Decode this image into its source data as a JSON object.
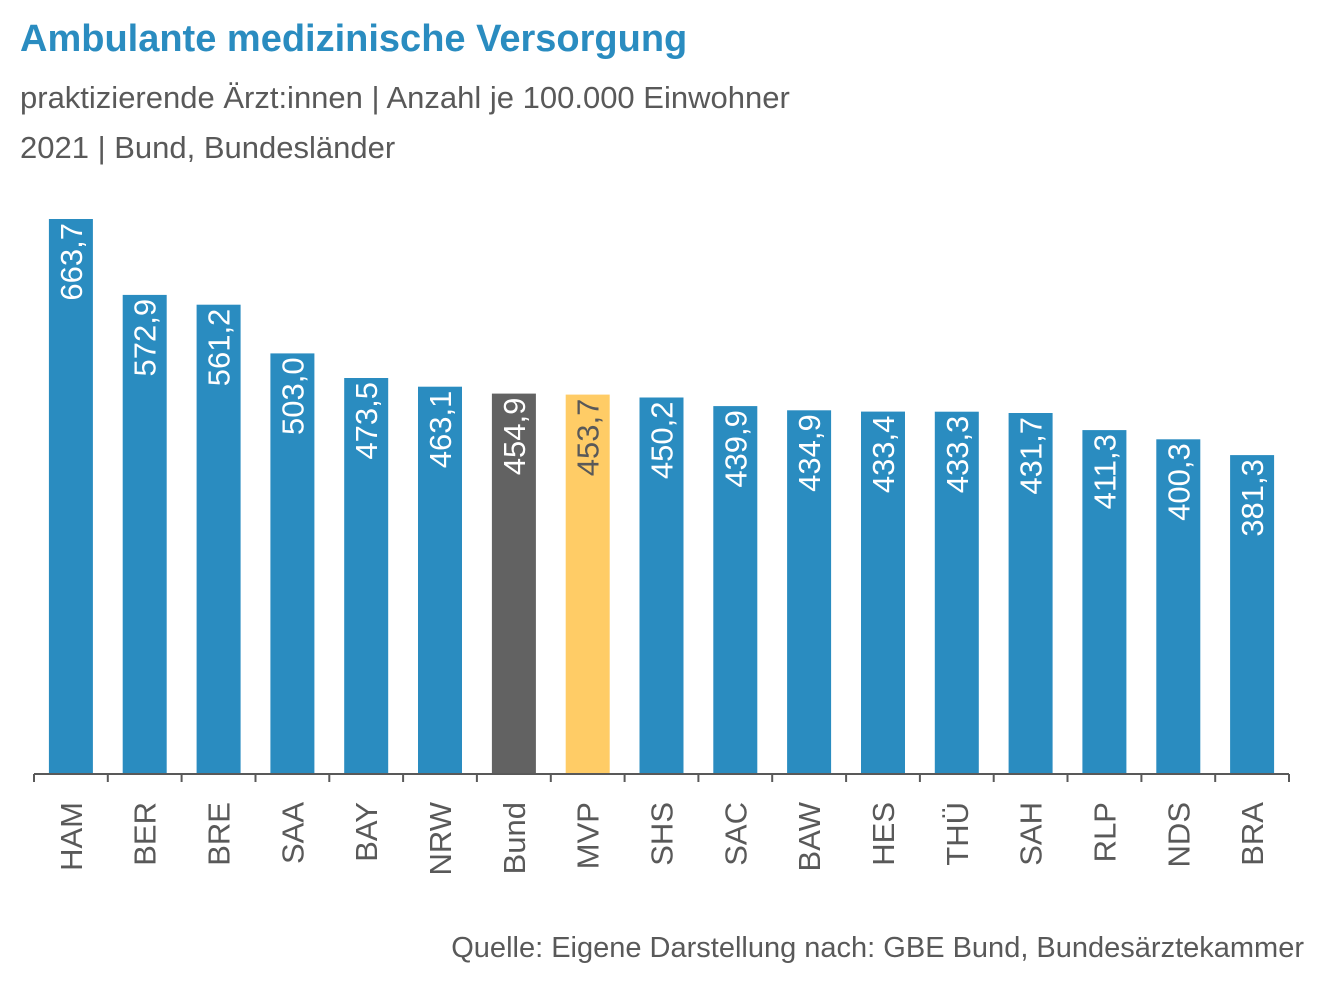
{
  "title": "Ambulante medizinische Versorgung",
  "subtitle_line1": "praktizierende Ärzt:innen | Anzahl je 100.000 Einwohner",
  "subtitle_line2": "2021 | Bund, Bundesländer",
  "source": "Quelle: Eigene Darstellung nach: GBE Bund, Bundesärztekammer",
  "colors": {
    "default_bar": "#2a8cc0",
    "bund_bar": "#626262",
    "highlight_bar": "#ffcc66",
    "label_on_default": "#ffffff",
    "label_on_bund": "#ffffff",
    "label_on_highlight": "#595959",
    "axis": "#595959",
    "category_text": "#595959"
  },
  "chart_data": {
    "type": "bar",
    "title": "Ambulante medizinische Versorgung",
    "xlabel": "",
    "ylabel": "",
    "ylim": [
      0,
      663.7
    ],
    "grid": false,
    "legend": "none",
    "categories": [
      "HAM",
      "BER",
      "BRE",
      "SAA",
      "BAY",
      "NRW",
      "Bund",
      "MVP",
      "SHS",
      "SAC",
      "BAW",
      "HES",
      "THÜ",
      "SAH",
      "RLP",
      "NDS",
      "BRA"
    ],
    "values": [
      663.7,
      572.9,
      561.2,
      503.0,
      473.5,
      463.1,
      454.9,
      453.7,
      450.2,
      439.9,
      434.9,
      433.4,
      433.3,
      431.7,
      411.3,
      400.3,
      381.3
    ],
    "value_labels": [
      "663,7",
      "572,9",
      "561,2",
      "503,0",
      "473,5",
      "463,1",
      "454,9",
      "453,7",
      "450,2",
      "439,9",
      "434,9",
      "433,4",
      "433,3",
      "431,7",
      "411,3",
      "400,3",
      "381,3"
    ],
    "bar_roles": [
      "default",
      "default",
      "default",
      "default",
      "default",
      "default",
      "bund",
      "highlight",
      "default",
      "default",
      "default",
      "default",
      "default",
      "default",
      "default",
      "default",
      "default"
    ]
  }
}
